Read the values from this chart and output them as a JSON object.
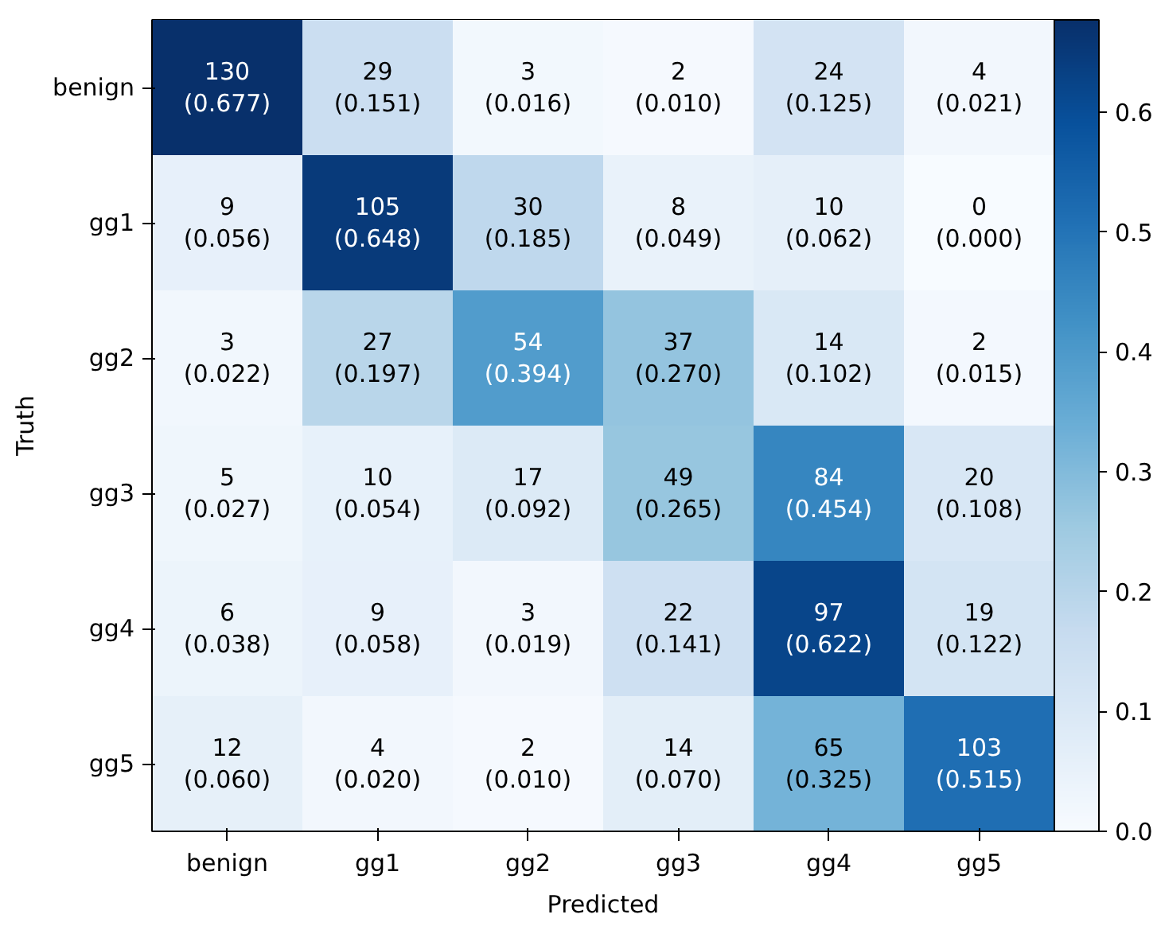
{
  "chart_data": {
    "type": "heatmap",
    "xlabel": "Predicted",
    "ylabel": "Truth",
    "categories": [
      "benign",
      "gg1",
      "gg2",
      "gg3",
      "gg4",
      "gg5"
    ],
    "y_categories": [
      "benign",
      "gg1",
      "gg2",
      "gg3",
      "gg4",
      "gg5"
    ],
    "cells": [
      [
        0.677,
        0.151,
        0.016,
        0.01,
        0.125,
        0.021
      ],
      [
        0.056,
        0.648,
        0.185,
        0.049,
        0.062,
        0.0
      ],
      [
        0.022,
        0.197,
        0.394,
        0.27,
        0.102,
        0.015
      ],
      [
        0.027,
        0.054,
        0.092,
        0.265,
        0.454,
        0.108
      ],
      [
        0.038,
        0.058,
        0.019,
        0.141,
        0.622,
        0.122
      ],
      [
        0.06,
        0.02,
        0.01,
        0.07,
        0.325,
        0.515
      ]
    ],
    "cell_labels": [
      [
        "130\n(0.677)",
        "29\n(0.151)",
        "3\n(0.016)",
        "2\n(0.010)",
        "24\n(0.125)",
        "4\n(0.021)"
      ],
      [
        "9\n(0.056)",
        "105\n(0.648)",
        "30\n(0.185)",
        "8\n(0.049)",
        "10\n(0.062)",
        "0\n(0.000)"
      ],
      [
        "3\n(0.022)",
        "27\n(0.197)",
        "54\n(0.394)",
        "37\n(0.270)",
        "14\n(0.102)",
        "2\n(0.015)"
      ],
      [
        "5\n(0.027)",
        "10\n(0.054)",
        "17\n(0.092)",
        "49\n(0.265)",
        "84\n(0.454)",
        "20\n(0.108)"
      ],
      [
        "6\n(0.038)",
        "9\n(0.058)",
        "3\n(0.019)",
        "22\n(0.141)",
        "97\n(0.622)",
        "19\n(0.122)"
      ],
      [
        "12\n(0.060)",
        "4\n(0.020)",
        "2\n(0.010)",
        "14\n(0.070)",
        "65\n(0.325)",
        "103\n(0.515)"
      ]
    ],
    "clim": [
      0,
      0.677
    ],
    "cticks": [
      {
        "value": 0,
        "label": "0.0"
      },
      {
        "value": 0.1,
        "label": "0.1"
      },
      {
        "value": 0.2,
        "label": "0.2"
      },
      {
        "value": 0.3,
        "label": "0.3"
      },
      {
        "value": 0.4,
        "label": "0.4"
      },
      {
        "value": 0.5,
        "label": "0.5"
      },
      {
        "value": 0.6,
        "label": "0.6"
      }
    ]
  }
}
